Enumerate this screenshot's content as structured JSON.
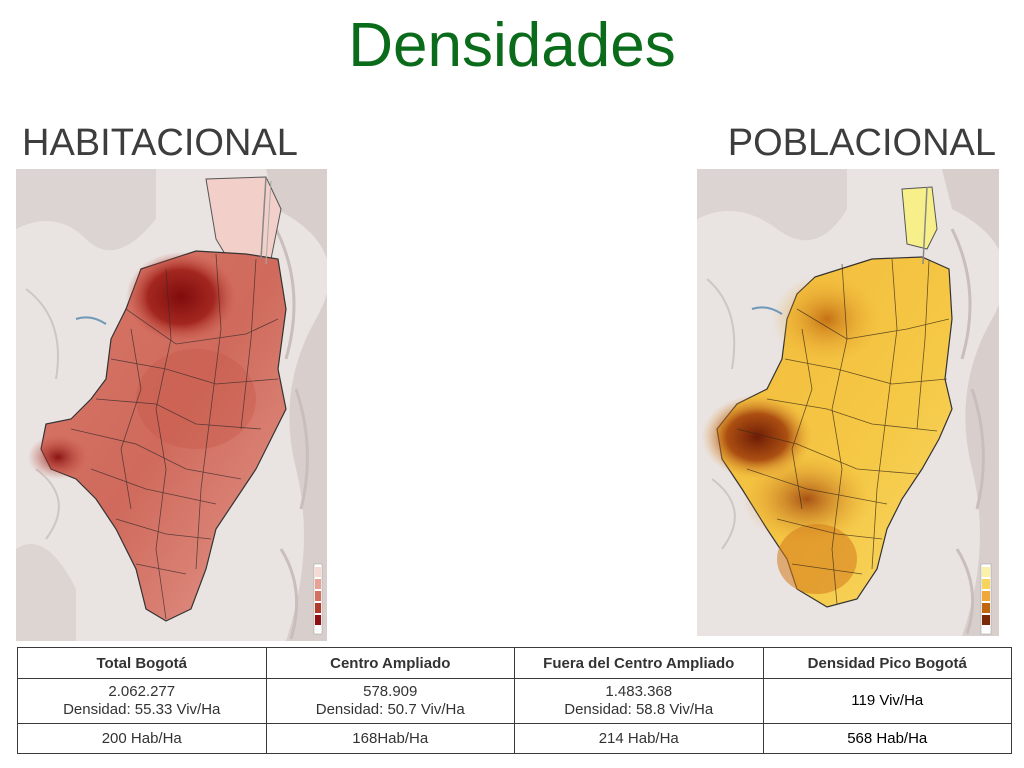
{
  "title": "Densidades",
  "left_heading": "HABITACIONAL",
  "right_heading": "POBLACIONAL",
  "table": {
    "headers": [
      "Total Bogotá",
      "Centro Ampliado",
      "Fuera del Centro Ampliado",
      "Densidad Pico Bogotá"
    ],
    "row1": [
      {
        "line1": "2.062.277",
        "line2": "Densidad: 55.33 Viv/Ha"
      },
      {
        "line1": "578.909",
        "line2": "Densidad: 50.7 Viv/Ha"
      },
      {
        "line1": "1.483.368",
        "line2": "Densidad: 58.8 Viv/Ha"
      },
      {
        "line1": "119 Viv/Ha",
        "line2": ""
      }
    ],
    "row2": [
      "200 Hab/Ha",
      "168Hab/Ha",
      "214 Hab/Ha",
      "568 Hab/Ha"
    ]
  },
  "colors": {
    "title": "#0a6b1a",
    "habitacional_dark": "#8e1010",
    "habitacional_light": "#e8a296",
    "poblacional_dark": "#7a2a06",
    "poblacional_light": "#f6cd3c"
  }
}
